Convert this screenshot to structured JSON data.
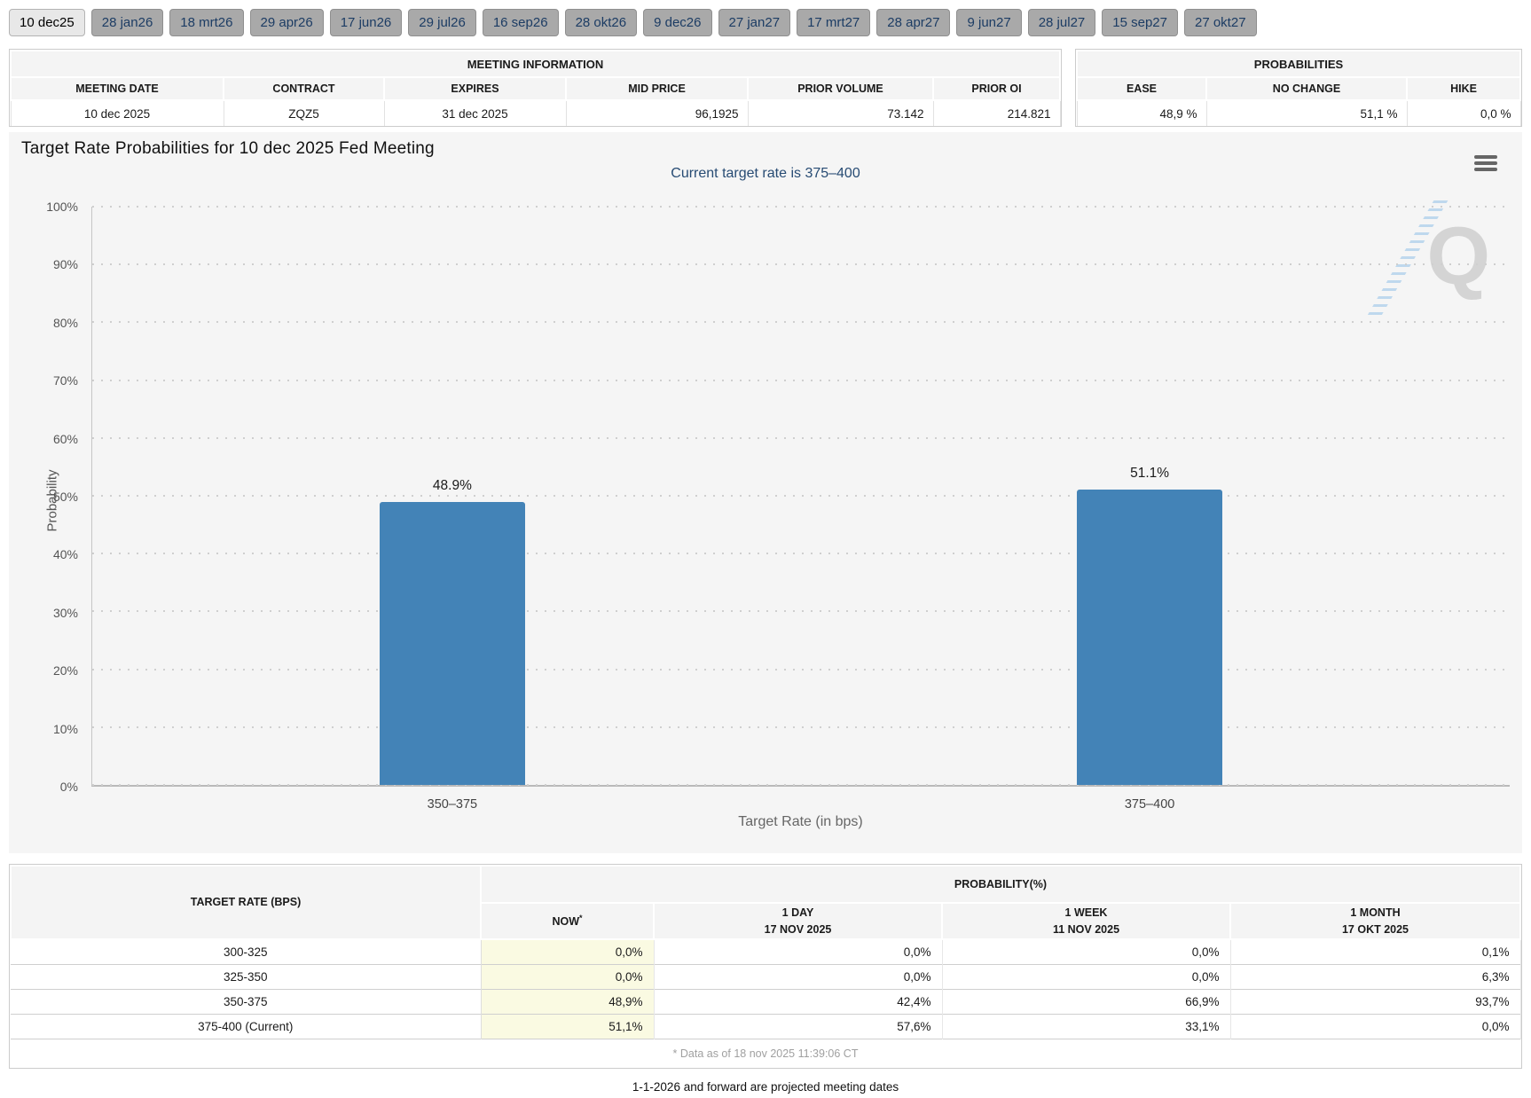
{
  "tabs": {
    "items": [
      {
        "label": "10 dec25",
        "active": true
      },
      {
        "label": "28 jan26",
        "active": false
      },
      {
        "label": "18 mrt26",
        "active": false
      },
      {
        "label": "29 apr26",
        "active": false
      },
      {
        "label": "17 jun26",
        "active": false
      },
      {
        "label": "29 jul26",
        "active": false
      },
      {
        "label": "16 sep26",
        "active": false
      },
      {
        "label": "28 okt26",
        "active": false
      },
      {
        "label": "9 dec26",
        "active": false
      },
      {
        "label": "27 jan27",
        "active": false
      },
      {
        "label": "17 mrt27",
        "active": false
      },
      {
        "label": "28 apr27",
        "active": false
      },
      {
        "label": "9 jun27",
        "active": false
      },
      {
        "label": "28 jul27",
        "active": false
      },
      {
        "label": "15 sep27",
        "active": false
      },
      {
        "label": "27 okt27",
        "active": false
      }
    ]
  },
  "meeting_information": {
    "title": "MEETING INFORMATION",
    "columns": {
      "meeting_date": "MEETING DATE",
      "contract": "CONTRACT",
      "expires": "EXPIRES",
      "mid_price": "MID PRICE",
      "prior_volume": "PRIOR VOLUME",
      "prior_oi": "PRIOR OI"
    },
    "row": {
      "meeting_date": "10 dec 2025",
      "contract": "ZQZ5",
      "expires": "31 dec 2025",
      "mid_price": "96,1925",
      "prior_volume": "73.142",
      "prior_oi": "214.821"
    }
  },
  "probabilities_summary": {
    "title": "PROBABILITIES",
    "columns": {
      "ease": "EASE",
      "no_change": "NO CHANGE",
      "hike": "HIKE"
    },
    "row": {
      "ease": "48,9 %",
      "no_change": "51,1 %",
      "hike": "0,0 %"
    }
  },
  "chart_data": {
    "type": "bar",
    "title": "Target Rate Probabilities for 10 dec 2025 Fed Meeting",
    "subtitle": "Current target rate is 375–400",
    "categories": [
      "350–375",
      "375–400"
    ],
    "values": [
      48.9,
      51.1
    ],
    "value_labels": [
      "48.9%",
      "51.1%"
    ],
    "xlabel": "Target Rate (in bps)",
    "ylabel": "Probability",
    "ylim": [
      0,
      100
    ],
    "ytick_step": 10,
    "ytick_labels": [
      "0%",
      "10%",
      "20%",
      "30%",
      "40%",
      "50%",
      "60%",
      "70%",
      "80%",
      "90%",
      "100%"
    ],
    "grid": "dotted-horizontal",
    "legend": "none",
    "bar_color": "#4383b7"
  },
  "watermark": {
    "letter": "Q"
  },
  "probability_table": {
    "target_rate_header": "TARGET RATE (BPS)",
    "group_header": "PROBABILITY(%)",
    "sub_columns": {
      "now": "NOW",
      "now_asterisk": "*",
      "day_line1": "1 DAY",
      "day_line2": "17 NOV 2025",
      "week_line1": "1 WEEK",
      "week_line2": "11 NOV 2025",
      "month_line1": "1 MONTH",
      "month_line2": "17 OKT 2025"
    },
    "rows": [
      {
        "target_rate": "300-325",
        "now": "0,0%",
        "day": "0,0%",
        "week": "0,0%",
        "month": "0,1%"
      },
      {
        "target_rate": "325-350",
        "now": "0,0%",
        "day": "0,0%",
        "week": "0,0%",
        "month": "6,3%"
      },
      {
        "target_rate": "350-375",
        "now": "48,9%",
        "day": "42,4%",
        "week": "66,9%",
        "month": "93,7%"
      },
      {
        "target_rate": "375-400 (Current)",
        "now": "51,1%",
        "day": "57,6%",
        "week": "33,1%",
        "month": "0,0%"
      }
    ],
    "footnote": "* Data as of 18 nov 2025 11:39:06 CT"
  },
  "footer": {
    "note": "1-1-2026 and forward are projected meeting dates"
  },
  "colors": {
    "bar": "#4383b7",
    "subtitle_navy": "#274b73",
    "tab_inactive_bg": "#a9a9a9",
    "tab_active_bg": "#e8e8e8",
    "now_column_bg": "#fafae2",
    "panel_bg": "#f5f5f5"
  }
}
